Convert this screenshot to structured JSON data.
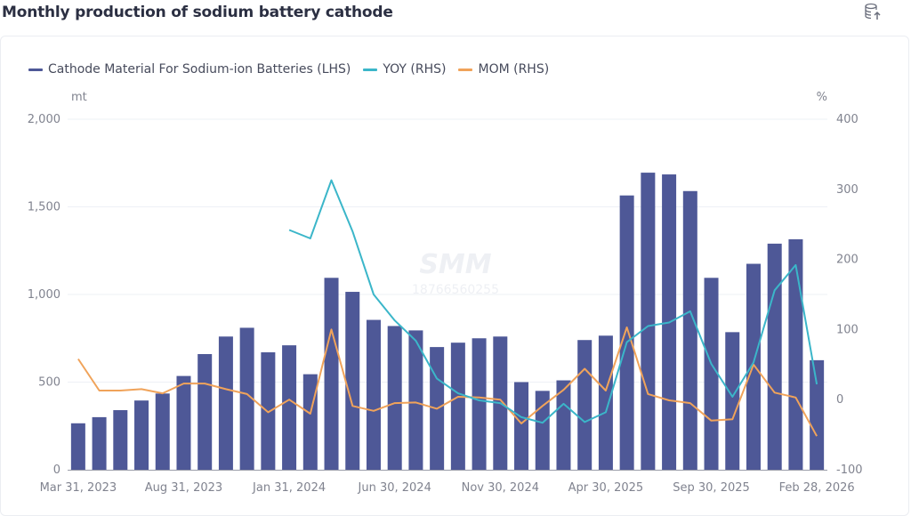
{
  "page": {
    "title": "Monthly production of sodium battery cathode",
    "export_icon": "database-export-icon"
  },
  "watermark": {
    "brand": "SMM",
    "phone": "18766560255"
  },
  "colors": {
    "bar": "#4e5897",
    "yoy": "#3bb6c9",
    "mom": "#f0a35a",
    "grid": "#eef0f6",
    "axis": "#9a9da8"
  },
  "chart_data": {
    "type": "bar",
    "title": "Monthly production of sodium battery cathode",
    "xlabel": "",
    "ylabel": "mt",
    "ylabel_right": "%",
    "ylim": [
      0,
      2000
    ],
    "ylim_right": [
      -100,
      400
    ],
    "yticks": [
      "0",
      "500",
      "1,000",
      "1,500",
      "2,000"
    ],
    "yticks_right": [
      "-100",
      "0",
      "100",
      "200",
      "300",
      "400"
    ],
    "grid": true,
    "legend_position": "top-left",
    "xtick_labels": [
      "Mar 31, 2023",
      "Aug 31, 2023",
      "Jan 31, 2024",
      "Jun 30, 2024",
      "Nov 30, 2024",
      "Apr 30, 2025",
      "Sep 30, 2025",
      "Feb 28, 2026"
    ],
    "xtick_indices": [
      0,
      5,
      10,
      15,
      20,
      25,
      30,
      35
    ],
    "categories": [
      "Mar 2023",
      "Apr 2023",
      "May 2023",
      "Jun 2023",
      "Jul 2023",
      "Aug 2023",
      "Sep 2023",
      "Oct 2023",
      "Nov 2023",
      "Dec 2023",
      "Jan 2024",
      "Feb 2024",
      "Mar 2024",
      "Apr 2024",
      "May 2024",
      "Jun 2024",
      "Jul 2024",
      "Aug 2024",
      "Sep 2024",
      "Oct 2024",
      "Nov 2024",
      "Dec 2024",
      "Jan 2025",
      "Feb 2025",
      "Mar 2025",
      "Apr 2025",
      "May 2025",
      "Jun 2025",
      "Jul 2025",
      "Aug 2025",
      "Sep 2025",
      "Oct 2025",
      "Nov 2025",
      "Dec 2025",
      "Jan 2026",
      "Feb 2026"
    ],
    "series": [
      {
        "name": "Cathode Material For Sodium-ion Batteries (LHS)",
        "type": "bar",
        "axis": "left",
        "values": [
          265,
          300,
          340,
          395,
          435,
          535,
          660,
          760,
          810,
          670,
          710,
          545,
          1095,
          1015,
          855,
          820,
          795,
          700,
          725,
          750,
          760,
          500,
          450,
          510,
          740,
          765,
          1565,
          1695,
          1685,
          1590,
          1095,
          785,
          1175,
          1290,
          1315,
          625
        ]
      },
      {
        "name": "YOY (RHS)",
        "type": "line",
        "axis": "right",
        "values": [
          null,
          null,
          null,
          null,
          null,
          null,
          null,
          null,
          null,
          null,
          242,
          230,
          313,
          240,
          150,
          113,
          84,
          30,
          9,
          -1,
          -5,
          -25,
          -33,
          -6,
          -32,
          -18,
          82,
          105,
          110,
          126,
          51,
          4,
          53,
          156,
          192,
          22
        ]
      },
      {
        "name": "MOM (RHS)",
        "type": "line",
        "axis": "right",
        "values": [
          58,
          13,
          13,
          15,
          9,
          23,
          23,
          15,
          8,
          -18,
          0,
          -20,
          100,
          -9,
          -16,
          -5,
          -4,
          -13,
          4,
          3,
          0,
          -34,
          -9,
          14,
          44,
          13,
          103,
          8,
          -1,
          -5,
          -30,
          -28,
          50,
          10,
          3,
          -52
        ]
      }
    ]
  }
}
